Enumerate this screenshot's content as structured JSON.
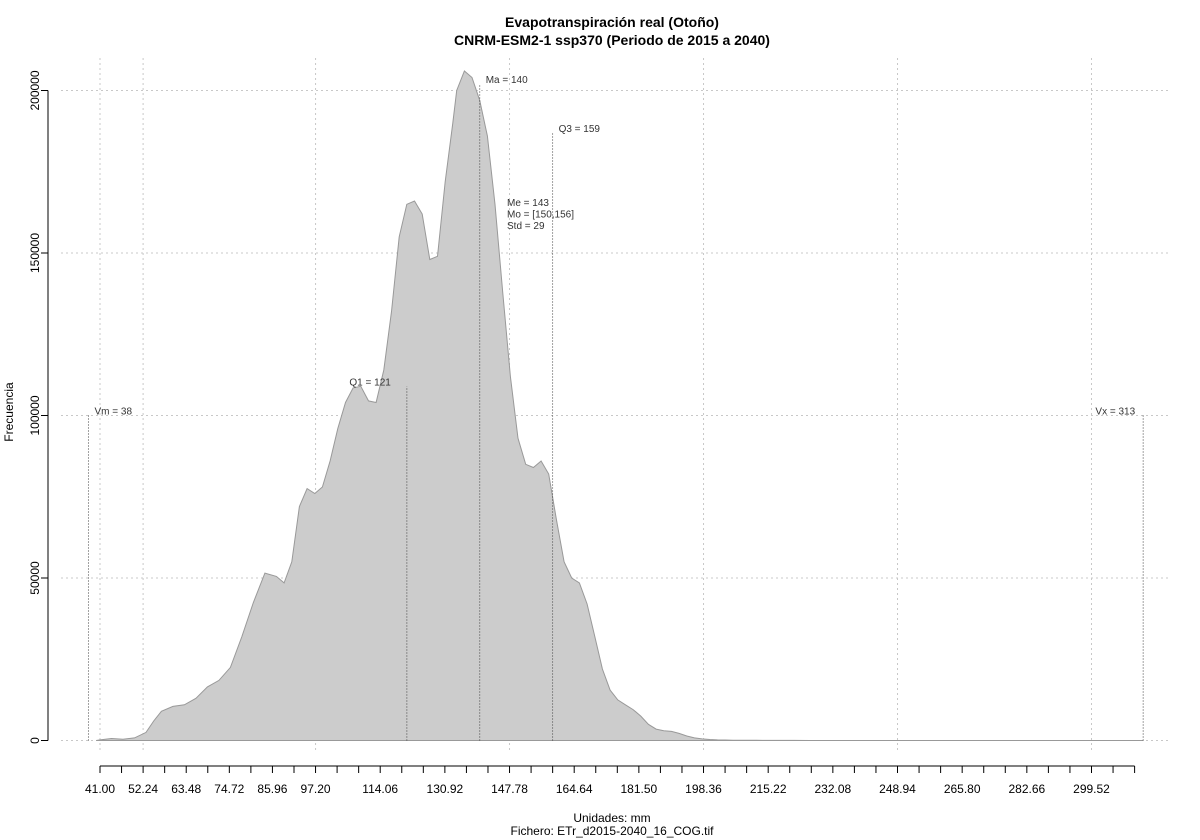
{
  "chart_data": {
    "type": "area",
    "title": "Evapotranspiración real (Otoño)",
    "subtitle": "CNRM-ESM2-1 ssp370 (Periodo de 2015 a 2040)",
    "xlabel": "Unidades: mm",
    "ylabel": "Frecuencia",
    "footer": "Fichero: ETr_d2015-2040_16_COG.tif",
    "xlim": [
      30,
      320
    ],
    "ylim": [
      0,
      210000
    ],
    "grid": true,
    "fill_color": "#cccccc",
    "line_color": "#999999",
    "x_ticks": [
      41.0,
      52.24,
      63.48,
      74.72,
      85.96,
      97.2,
      114.06,
      130.92,
      147.78,
      164.64,
      181.5,
      198.36,
      215.22,
      232.08,
      248.94,
      265.8,
      282.66,
      299.52
    ],
    "x_tick_labels": [
      "41.00",
      "52.24",
      "63.48",
      "74.72",
      "85.96",
      "97.20",
      "114.06",
      "130.92",
      "147.78",
      "164.64",
      "181.50",
      "198.36",
      "215.22",
      "232.08",
      "248.94",
      "265.80",
      "282.66",
      "299.52"
    ],
    "x_minor_ticks": [
      46.62,
      57.86,
      69.1,
      80.34,
      91.58,
      102.82,
      108.44,
      119.68,
      125.3,
      136.54,
      142.16,
      153.4,
      159.02,
      170.26,
      175.88,
      187.12,
      192.74,
      203.98,
      209.6,
      220.84,
      226.46,
      237.7,
      243.32,
      254.56,
      260.18,
      271.42,
      277.04,
      288.28,
      293.9,
      305.14,
      310.76
    ],
    "y_ticks": [
      0,
      50000,
      100000,
      150000,
      200000
    ],
    "y_tick_labels": [
      "0",
      "50000",
      "100000",
      "150000",
      "200000"
    ],
    "x_grid": [
      41.0,
      52.24,
      97.2,
      147.78,
      198.36,
      248.94,
      299.52
    ],
    "y_grid": [
      0,
      50000,
      100000,
      150000,
      200000
    ],
    "series": [
      {
        "x": [
          40,
          41,
          44,
          47,
          50,
          53,
          55,
          57,
          60,
          63,
          66,
          69,
          72,
          75,
          78,
          81,
          84,
          87,
          89,
          91,
          93,
          95,
          97,
          99,
          101,
          103,
          105,
          107,
          109,
          111,
          113,
          115,
          117,
          119,
          121,
          123,
          125,
          127,
          129,
          131,
          133,
          134,
          136,
          138,
          140,
          142,
          144,
          146,
          148,
          150,
          152,
          154,
          156,
          158,
          160,
          162,
          164,
          166,
          168,
          170,
          172,
          174,
          176,
          178,
          180,
          182,
          184,
          186,
          188,
          190,
          192,
          194,
          196,
          198,
          200,
          202,
          204,
          206,
          208,
          210,
          212,
          215,
          218,
          222,
          226,
          230,
          235,
          240,
          250,
          260,
          270,
          280,
          290,
          300,
          310,
          313
        ],
        "y": [
          0,
          200,
          600,
          400,
          800,
          2500,
          6000,
          9000,
          10500,
          11000,
          13000,
          16500,
          18500,
          22500,
          32000,
          42500,
          51500,
          50500,
          48500,
          55000,
          72000,
          77500,
          76000,
          78000,
          86000,
          96000,
          104000,
          108500,
          109000,
          104500,
          104000,
          114000,
          132000,
          155000,
          165000,
          166000,
          162000,
          148000,
          149000,
          172000,
          190000,
          200000,
          206000,
          204000,
          197000,
          186000,
          165000,
          138000,
          112000,
          93000,
          85000,
          84000,
          86000,
          82000,
          68000,
          55000,
          50000,
          48500,
          42000,
          32000,
          22000,
          15500,
          12500,
          11000,
          9500,
          7500,
          5000,
          3500,
          3000,
          2800,
          2200,
          1400,
          800,
          500,
          300,
          200,
          150,
          100,
          80,
          60,
          50,
          40,
          30,
          20,
          10,
          5,
          0,
          0,
          0,
          0,
          0,
          0,
          0,
          0,
          0,
          0
        ]
      }
    ],
    "annotations": [
      {
        "key": "vm",
        "label": "Vm = 38",
        "x": 38,
        "y_top": 100000,
        "side": "right"
      },
      {
        "key": "q1",
        "label": "Q1 = 121",
        "x": 121,
        "y_top": 109000,
        "side": "left"
      },
      {
        "key": "ma",
        "label": "Ma = 140",
        "x": 140,
        "y_top": 202000,
        "side": "right"
      },
      {
        "key": "q3",
        "label": "Q3 = 159",
        "x": 159,
        "y_top": 187000,
        "side": "right"
      },
      {
        "key": "vx",
        "label": "Vx = 313",
        "x": 313,
        "y_top": 100000,
        "side": "left"
      }
    ],
    "stats": [
      "Me = 143",
      "Mo = [150,156]",
      "Std = 29"
    ]
  }
}
